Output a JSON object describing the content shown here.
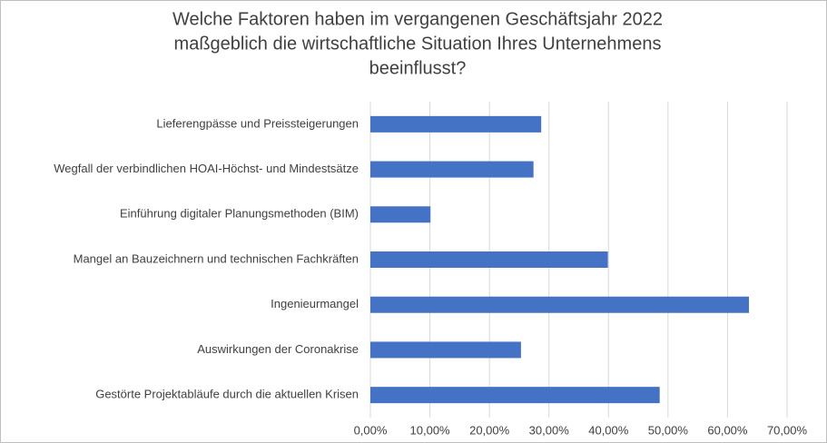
{
  "chart_data": {
    "type": "bar",
    "orientation": "horizontal",
    "title": [
      "Welche Faktoren haben im vergangenen Geschäftsjahr 2022",
      "maßgeblich die wirtschaftliche Situation Ihres Unternehmens",
      "beeinflusst?"
    ],
    "categories": [
      "Lieferengpässe und Preissteigerungen",
      "Wegfall der verbindlichen HOAI-Höchst- und Mindestsätze",
      "Einführung digitaler Planungsmethoden (BIM)",
      "Mangel an Bauzeichnern und technischen Fachkräften",
      "Ingenieurmangel",
      "Auswirkungen der Coronakrise",
      "Gestörte Projektabläufe durch die aktuellen Krisen"
    ],
    "values": [
      28.7,
      27.4,
      10.1,
      39.9,
      63.6,
      25.3,
      48.6
    ],
    "color": "#4472c4",
    "xlim": [
      0,
      70
    ],
    "xticks": [
      {
        "value": 0,
        "label": "0,00%"
      },
      {
        "value": 10,
        "label": "10,00%"
      },
      {
        "value": 20,
        "label": "20,00%"
      },
      {
        "value": 30,
        "label": "30,00%"
      },
      {
        "value": 40,
        "label": "40,00%"
      },
      {
        "value": 50,
        "label": "50,00%"
      },
      {
        "value": 60,
        "label": "60,00%"
      },
      {
        "value": 70,
        "label": "70,00%"
      }
    ],
    "grid": true
  }
}
